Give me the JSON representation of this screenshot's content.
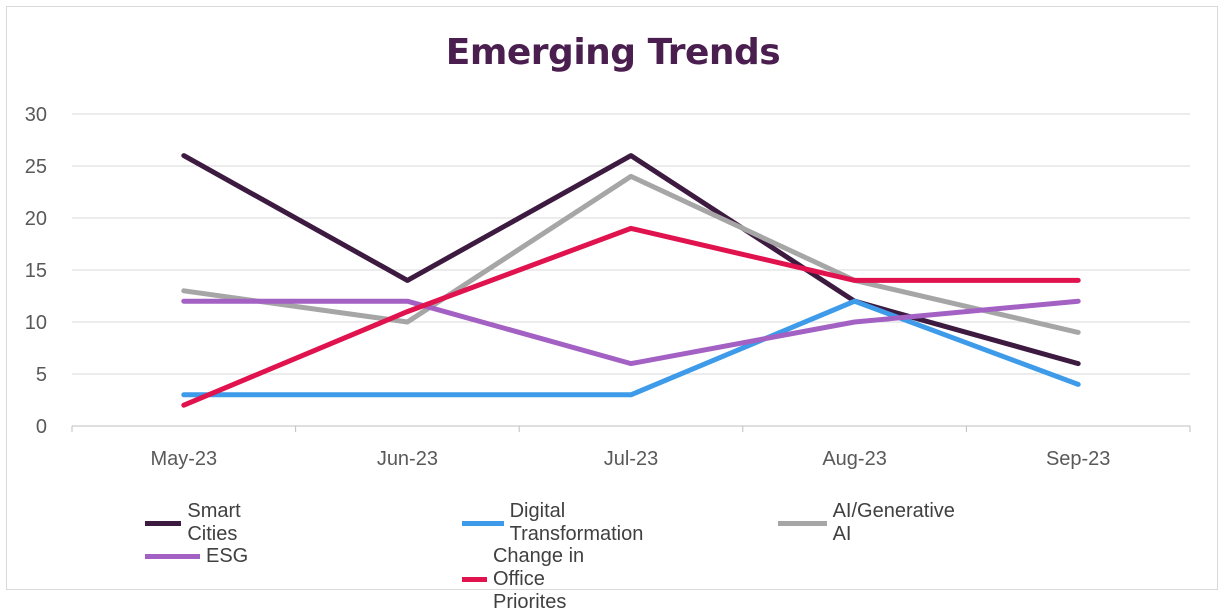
{
  "chart_data": {
    "type": "line",
    "title": "Emerging Trends",
    "xlabel": "",
    "ylabel": "",
    "categories": [
      "May-23",
      "Jun-23",
      "Jul-23",
      "Aug-23",
      "Sep-23"
    ],
    "ylim": [
      0,
      30
    ],
    "yticks": [
      "0",
      "5",
      "10",
      "15",
      "20",
      "25",
      "30"
    ],
    "grid": true,
    "legend_position": "bottom",
    "series": [
      {
        "name": "Smart Cities",
        "color": "#3d1a40",
        "values": [
          26,
          14,
          26,
          12,
          6
        ]
      },
      {
        "name": "Digital Transformation",
        "color": "#3d9be9",
        "values": [
          3,
          3,
          3,
          12,
          4
        ]
      },
      {
        "name": "AI/Generative AI",
        "color": "#a6a6a6",
        "values": [
          13,
          10,
          24,
          14,
          9
        ]
      },
      {
        "name": "ESG",
        "color": "#a461c4",
        "values": [
          12,
          12,
          6,
          10,
          12
        ]
      },
      {
        "name": "Change in Office Priorites",
        "color": "#e0134f",
        "values": [
          2,
          11,
          19,
          14,
          14
        ]
      }
    ]
  }
}
